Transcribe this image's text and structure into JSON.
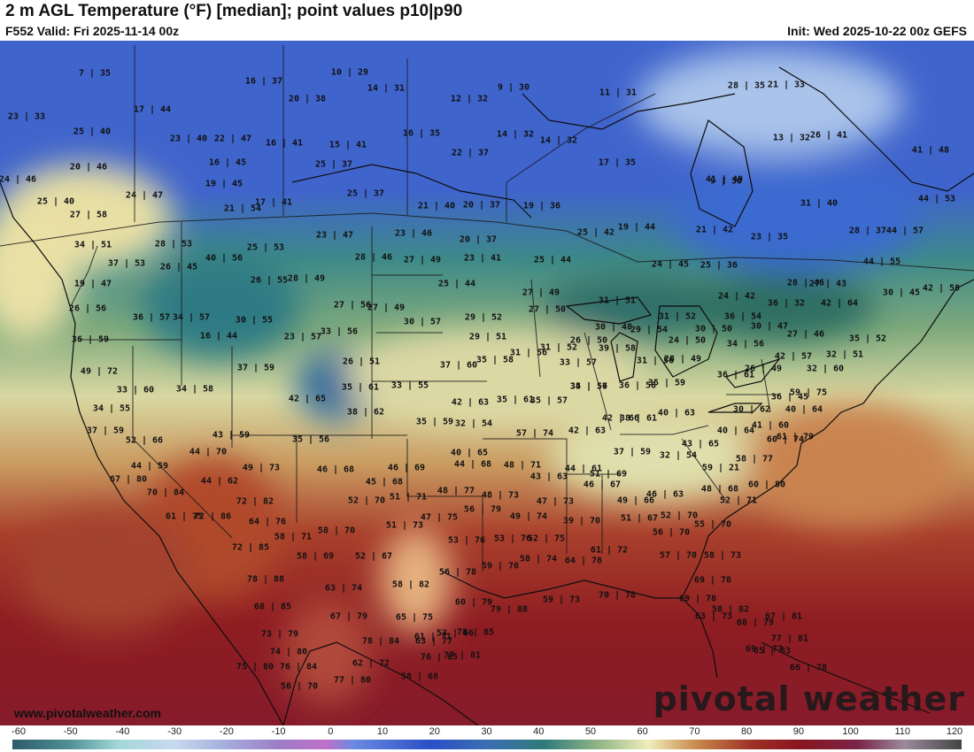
{
  "header": {
    "title": "2 m AGL Temperature (°F) [median]; point values p10|p90",
    "valid": "F552 Valid: Fri 2025-11-14 00z",
    "init": "Init: Wed 2025-10-22 00z GEFS"
  },
  "footer": {
    "site": "www.pivotalweather.com",
    "watermark": "pivotal weather"
  },
  "colorbar": {
    "ticks": [
      "-60",
      "-50",
      "-40",
      "-30",
      "-20",
      "-10",
      "0",
      "10",
      "20",
      "30",
      "40",
      "50",
      "60",
      "70",
      "80",
      "90",
      "100",
      "110",
      "120"
    ],
    "range": [
      -60,
      120
    ]
  },
  "point_values": [
    "7|35",
    "10|29",
    "16|37",
    "14|31",
    "12|32",
    "9|30",
    "11|31",
    "28|35",
    "21|33",
    "23|33",
    "17|44",
    "20|38",
    "16|35",
    "25|40",
    "23|40",
    "22|47",
    "16|41",
    "15|41",
    "14|32",
    "14|32",
    "22|37",
    "17|35",
    "13|32",
    "26|41",
    "20|46",
    "16|45",
    "25|37",
    "9|30",
    "41|48",
    "24|46",
    "19|45",
    "25|37",
    "41|49",
    "25|40",
    "24|47",
    "21|54",
    "17|41",
    "21|40",
    "20|37",
    "19|36",
    "31|40",
    "44|53",
    "27|58",
    "23|47",
    "23|46",
    "20|37",
    "25|42",
    "19|44",
    "21|42",
    "23|35",
    "28|37",
    "44|57",
    "34|51",
    "28|53",
    "25|53",
    "28|46",
    "27|49",
    "23|41",
    "25|44",
    "40|56",
    "37|53",
    "26|45",
    "24|45",
    "25|36",
    "44|55",
    "19|47",
    "26|55",
    "28|49",
    "25|44",
    "28|46",
    "27|43",
    "30|45",
    "42|58",
    "26|56",
    "27|56",
    "27|49",
    "27|49",
    "31|51",
    "24|42",
    "36|32",
    "36|57",
    "34|57",
    "30|55",
    "30|57",
    "29|52",
    "27|50",
    "31|52",
    "36|54",
    "30|47",
    "42|64",
    "36|59",
    "16|44",
    "23|57",
    "33|56",
    "29|51",
    "30|48",
    "29|54",
    "30|50",
    "27|46",
    "35|52",
    "31|52",
    "26|50",
    "24|50",
    "34|56",
    "39|58",
    "32|51",
    "49|72",
    "37|59",
    "26|51",
    "37|60",
    "35|58",
    "31|56",
    "33|57",
    "35|57",
    "31|56",
    "28|49",
    "26|49",
    "42|57",
    "32|60",
    "33|60",
    "34|58",
    "35|61",
    "33|55",
    "36|61",
    "59|75",
    "34|55",
    "42|65",
    "42|63",
    "35|61",
    "35|57",
    "34|56",
    "36|58",
    "35|59",
    "36|45",
    "40|64",
    "37|59",
    "38|62",
    "35|59",
    "32|54",
    "57|74",
    "42|63",
    "42|66",
    "38|61",
    "40|63",
    "30|62",
    "41|60",
    "61|79",
    "52|66",
    "43|59",
    "35|56",
    "40|64",
    "60|74",
    "44|70",
    "40|65",
    "37|59",
    "32|54",
    "43|65",
    "58|77",
    "44|59",
    "49|73",
    "44|68",
    "48|71",
    "44|61",
    "59|21",
    "67|80",
    "44|62",
    "46|68",
    "46|69",
    "43|63",
    "51|69",
    "60|80",
    "45|68",
    "46|67",
    "48|68",
    "70|84",
    "48|77",
    "48|73",
    "47|73",
    "49|66",
    "46|63",
    "72|82",
    "52|70",
    "51|71",
    "52|71",
    "61|75",
    "72|86",
    "47|75",
    "56|79",
    "49|74",
    "39|70",
    "51|67",
    "52|70",
    "64|76",
    "55|70",
    "51|73",
    "58|71",
    "58|70",
    "53|76",
    "53|76",
    "52|75",
    "56|70",
    "72|85",
    "58|69",
    "52|67",
    "57|70",
    "61|72",
    "58|73",
    "56|78",
    "59|76",
    "58|74",
    "64|78",
    "78|88",
    "63|74",
    "58|82",
    "60|79",
    "59|73",
    "70|78",
    "69|78",
    "69|78",
    "79|88",
    "68|85",
    "67|79",
    "65|75",
    "63|73",
    "58|82",
    "68|79",
    "73|79",
    "78|84",
    "63|77",
    "53|66",
    "65|83",
    "74|80",
    "76|85",
    "78|85",
    "67|81",
    "75|80",
    "76|84",
    "62|72",
    "61|71",
    "77|81",
    "77|81",
    "77|80",
    "58|68",
    "66|78",
    "69|77",
    "56|70"
  ]
}
